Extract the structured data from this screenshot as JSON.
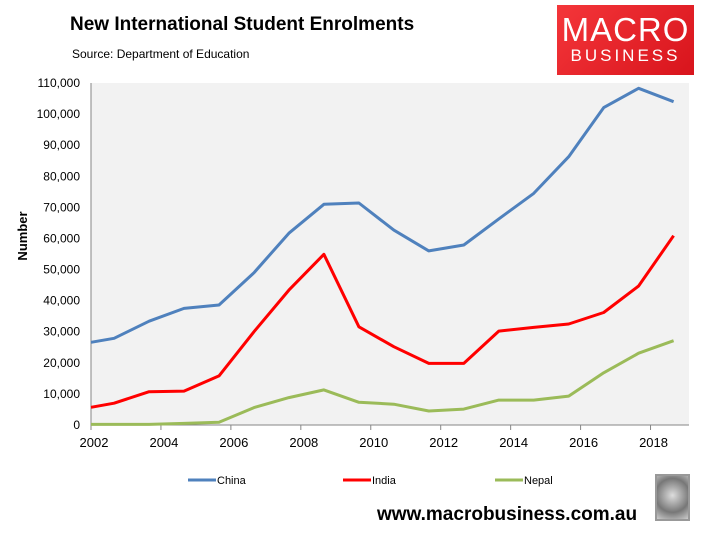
{
  "header": {
    "title": "New International Student Enrolments",
    "subtitle": "Source: Department of Education"
  },
  "logo": {
    "line1": "MACRO",
    "line2": "BUSINESS"
  },
  "footer": {
    "url": "www.macrobusiness.com.au"
  },
  "chart_data": {
    "type": "line",
    "title": "New International Student Enrolments",
    "xlabel": "",
    "ylabel": "Number",
    "xlim": [
      2002,
      2019.1
    ],
    "ylim": [
      0,
      110000
    ],
    "yticks": [
      0,
      10000,
      20000,
      30000,
      40000,
      50000,
      60000,
      70000,
      80000,
      90000,
      100000,
      110000
    ],
    "ytick_labels": [
      "0",
      "10,000",
      "20,000",
      "30,000",
      "40,000",
      "50,000",
      "60,000",
      "70,000",
      "80,000",
      "90,000",
      "100,000",
      "110,000"
    ],
    "xticks": [
      2002,
      2004,
      2006,
      2008,
      2010,
      2012,
      2014,
      2016,
      2018
    ],
    "xtick_labels": [
      "2002",
      "2004",
      "2006",
      "2008",
      "2010",
      "2012",
      "2014",
      "2016",
      "2018"
    ],
    "grid": false,
    "legend": "bottom",
    "x": [
      2002,
      2002.66,
      2003.66,
      2004.66,
      2005.66,
      2006.66,
      2007.66,
      2008.66,
      2009.66,
      2010.66,
      2011.66,
      2012.66,
      2013.66,
      2014.66,
      2015.66,
      2016.66,
      2017.66,
      2018.66
    ],
    "series": [
      {
        "name": "China",
        "color": "#4f81bd",
        "values": [
          26600,
          27900,
          33400,
          37500,
          38600,
          49000,
          61700,
          71000,
          71400,
          62700,
          56000,
          57900,
          66300,
          74500,
          86300,
          102100,
          108300,
          104000
        ]
      },
      {
        "name": "India",
        "color": "#ff0000",
        "values": [
          5700,
          7000,
          10700,
          10900,
          15800,
          30000,
          43400,
          54900,
          31600,
          25200,
          19800,
          19800,
          30200,
          31400,
          32500,
          36200,
          44700,
          60900
        ]
      },
      {
        "name": "Nepal",
        "color": "#9bbb59",
        "values": [
          200,
          200,
          200,
          500,
          900,
          5600,
          8800,
          11300,
          7300,
          6700,
          4500,
          5100,
          8000,
          8000,
          9300,
          16800,
          23100,
          27100
        ]
      }
    ]
  }
}
